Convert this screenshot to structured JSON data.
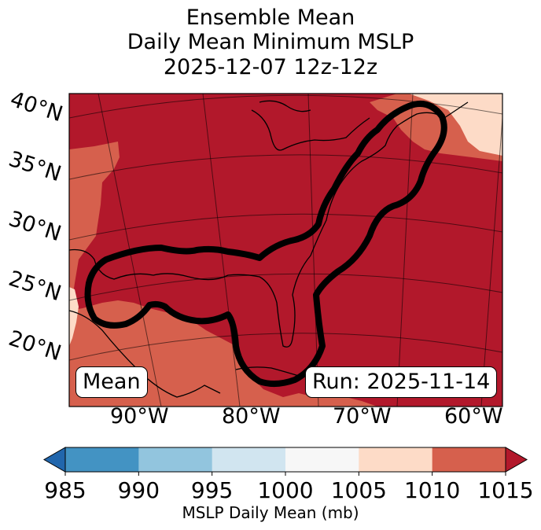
{
  "title": {
    "line1": "Ensemble Mean",
    "line2": "Daily Mean Minimum MSLP",
    "line3": "2025-12-07 12z-12z"
  },
  "lat_labels": [
    "40°N",
    "35°N",
    "30°N",
    "25°N",
    "20°N"
  ],
  "lon_labels": [
    "90°W",
    "80°W",
    "70°W",
    "60°W"
  ],
  "annotations": {
    "left_box": "Mean",
    "right_box": "Run: 2025-11-14"
  },
  "colorbar": {
    "label": "MSLP Daily Mean (mb)",
    "ticks": [
      "985",
      "990",
      "995",
      "1000",
      "1005",
      "1010",
      "1015"
    ],
    "bins": [
      {
        "range": [
          985,
          990
        ],
        "color": "#4393c3"
      },
      {
        "range": [
          990,
          995
        ],
        "color": "#92c5de"
      },
      {
        "range": [
          995,
          1000
        ],
        "color": "#d1e5f0"
      },
      {
        "range": [
          1000,
          1005
        ],
        "color": "#f7f7f7"
      },
      {
        "range": [
          1005,
          1010
        ],
        "color": "#fddbc7"
      },
      {
        "range": [
          1010,
          1015
        ],
        "color": "#d6604d"
      }
    ],
    "under_color": "#2166ac",
    "over_color": "#b2182b",
    "extend": "both"
  },
  "map_colors": {
    "dominant": "#b2182b",
    "secondary": "#d6604d",
    "light": "#fddbc7",
    "contour": "#000000",
    "coastline": "#000000"
  }
}
